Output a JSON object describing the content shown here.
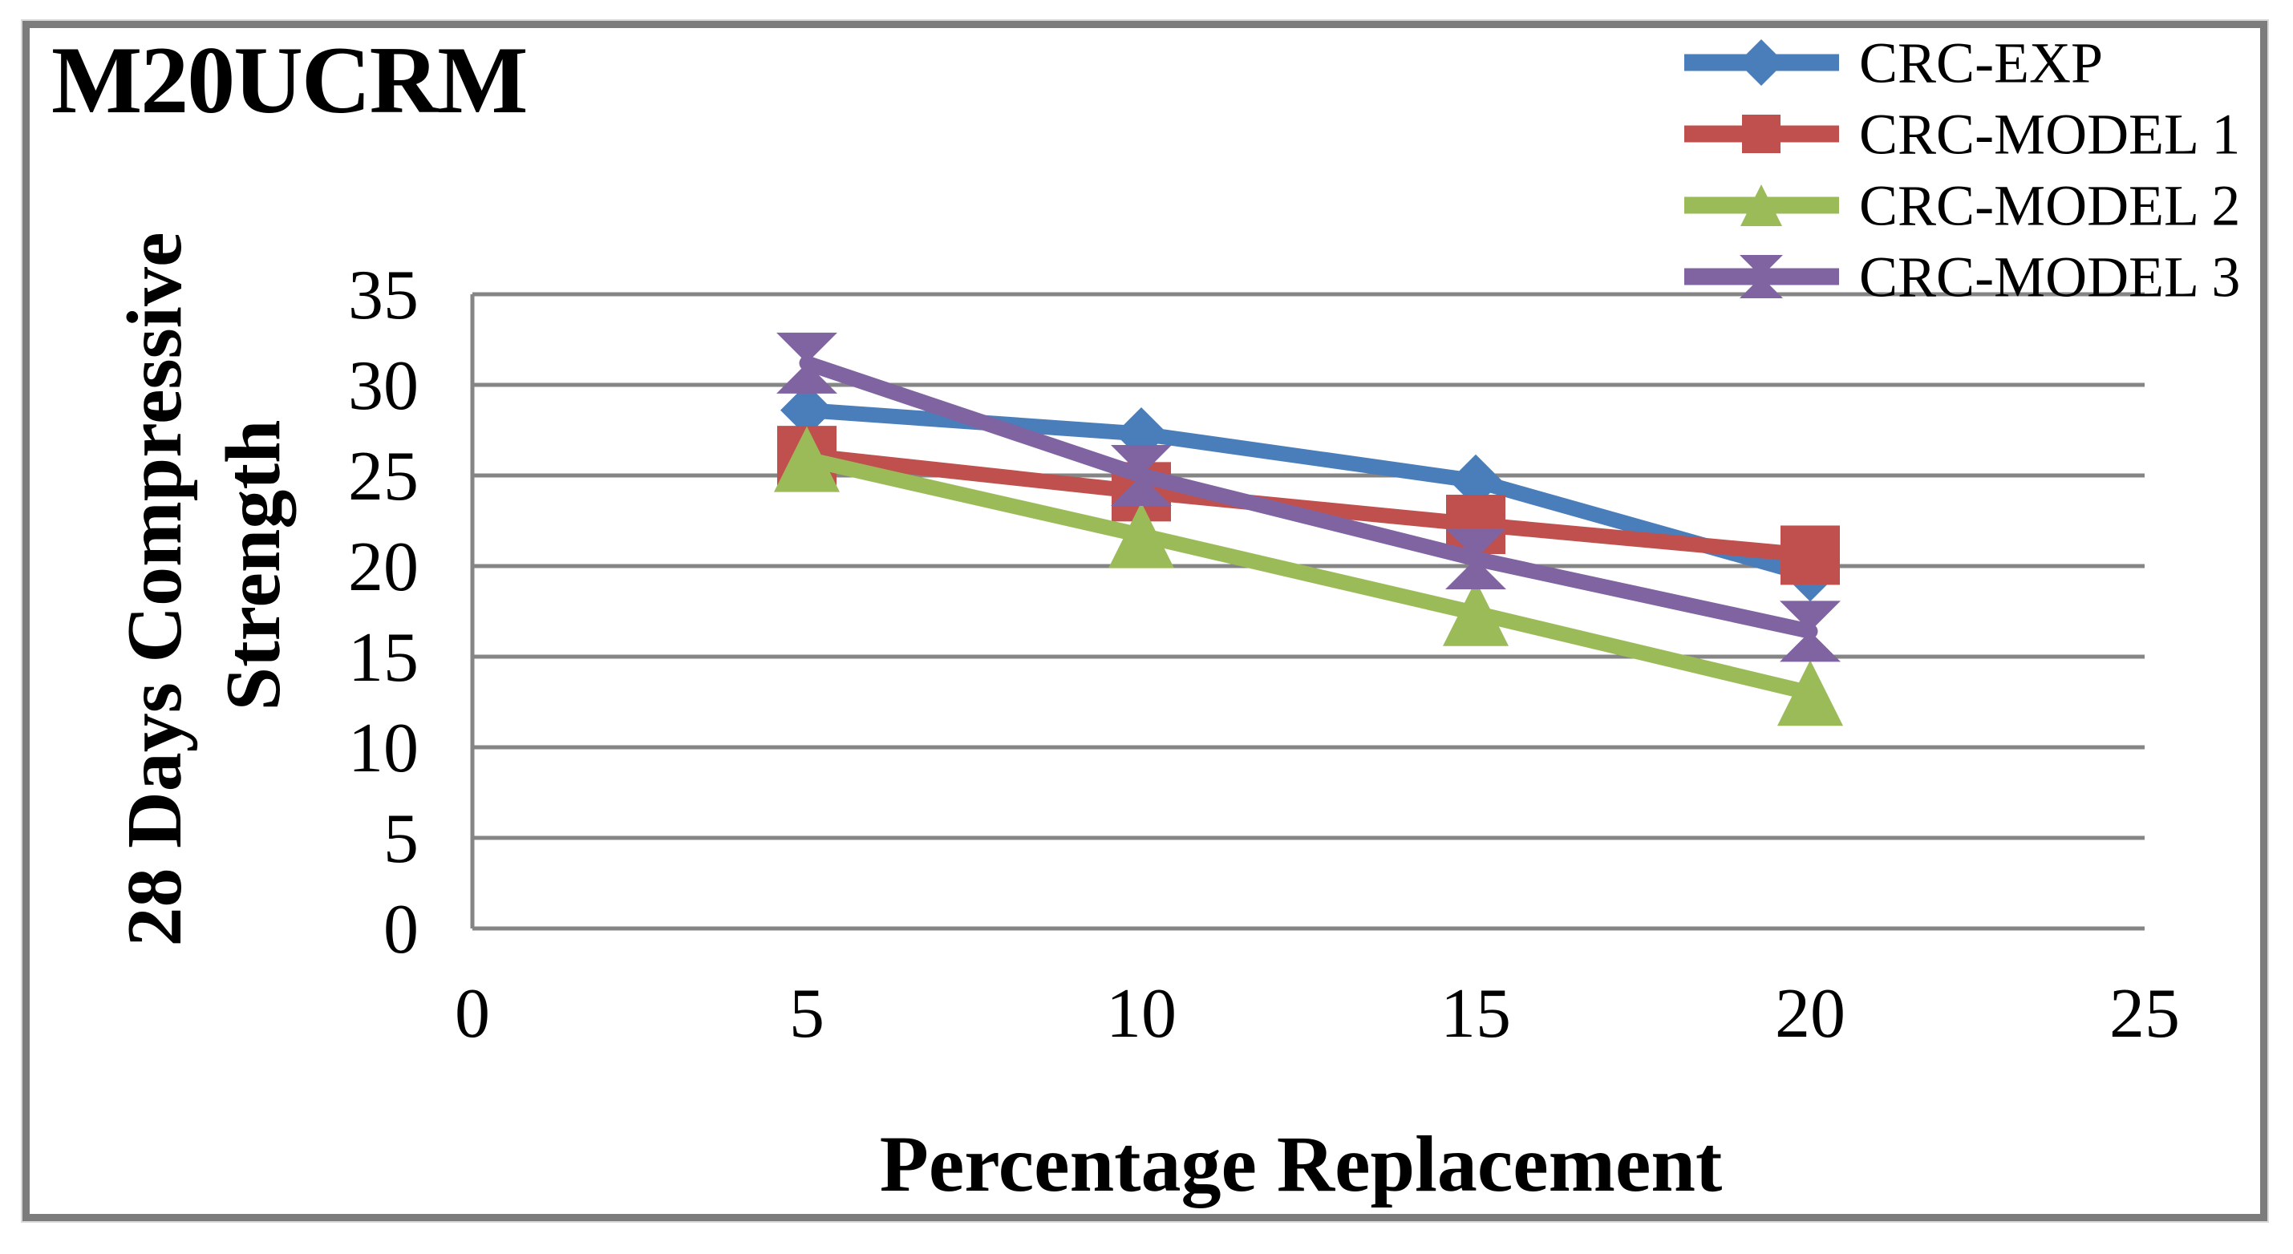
{
  "figure": {
    "title": "M20UCRM",
    "x_axis_label": "Percentage Replacement",
    "y_axis_label_line1": "28 Days Compressive",
    "y_axis_label_line2": "Strength",
    "border_color": "#7c7c7c",
    "grid_color": "#858585",
    "background_color": "#ffffff",
    "text_color": "#000000"
  },
  "chart_data": {
    "type": "line",
    "title": "M20UCRM",
    "xlabel": "Percentage Replacement",
    "ylabel": "28 Days Compressive Strength",
    "x": [
      5,
      10,
      15,
      20
    ],
    "xlim": [
      0,
      25
    ],
    "ylim": [
      0,
      35
    ],
    "x_ticks": [
      0,
      5,
      10,
      15,
      20,
      25
    ],
    "y_ticks": [
      0,
      5,
      10,
      15,
      20,
      25,
      30,
      35
    ],
    "grid": "horizontal",
    "legend_position": "top-right",
    "series": [
      {
        "name": "CRC-EXP",
        "color": "#4a7ebb",
        "marker": "diamond",
        "values": [
          28.6,
          27.3,
          24.7,
          19.5
        ]
      },
      {
        "name": "CRC-MODEL 1",
        "color": "#c0504d",
        "marker": "square",
        "values": [
          26.1,
          24.1,
          22.3,
          20.6
        ]
      },
      {
        "name": "CRC-MODEL 2",
        "color": "#9bbb59",
        "marker": "triangle",
        "values": [
          25.9,
          21.7,
          17.4,
          13.0
        ]
      },
      {
        "name": "CRC-MODEL 3",
        "color": "#8064a2",
        "marker": "bowtie",
        "values": [
          31.2,
          25.0,
          20.4,
          16.4
        ]
      }
    ]
  }
}
